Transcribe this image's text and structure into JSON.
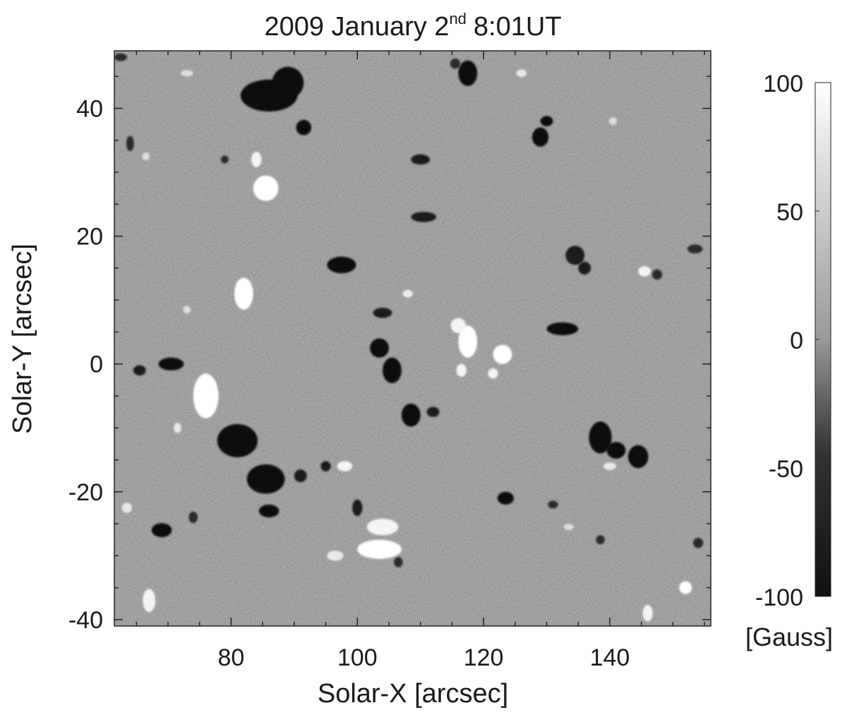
{
  "chart_data": {
    "type": "heatmap",
    "title": {
      "main": "2009 January 2",
      "superscript": "nd",
      "rest": "8:01UT"
    },
    "xlabel": "Solar-X [arcsec]",
    "ylabel": "Solar-Y [arcsec]",
    "xlim": [
      61.5,
      156
    ],
    "ylim": [
      -41,
      49
    ],
    "x_ticks": [
      80,
      100,
      120,
      140
    ],
    "x_tick_labels": [
      "80",
      "100",
      "120",
      "140"
    ],
    "y_ticks": [
      -40,
      -20,
      0,
      20,
      40
    ],
    "y_tick_labels": [
      "-40",
      "-20",
      "0",
      "20",
      "40"
    ],
    "colorbar": {
      "range": [
        -100,
        100
      ],
      "ticks": [
        100,
        50,
        0,
        -50,
        -100
      ],
      "tick_labels": [
        "100",
        "50",
        "0",
        "-50",
        "-100"
      ],
      "unit": "[Gauss]",
      "colormap": "gray",
      "min_color": "#111111",
      "max_color": "#ffffff"
    },
    "negative_patches": [
      {
        "x": 86.0,
        "y": 42.0,
        "rx": 4.5,
        "ry": 2.5,
        "value": -100
      },
      {
        "x": 89.0,
        "y": 44.0,
        "rx": 2.5,
        "ry": 2.5,
        "value": -100
      },
      {
        "x": 91.5,
        "y": 37.0,
        "rx": 1.2,
        "ry": 1.2,
        "value": -100
      },
      {
        "x": 117.5,
        "y": 45.5,
        "rx": 1.5,
        "ry": 2.0,
        "value": -100
      },
      {
        "x": 129.0,
        "y": 35.5,
        "rx": 1.3,
        "ry": 1.5,
        "value": -100
      },
      {
        "x": 130.0,
        "y": 38.0,
        "rx": 1.0,
        "ry": 0.8,
        "value": -100
      },
      {
        "x": 110.0,
        "y": 32.0,
        "rx": 1.5,
        "ry": 0.8,
        "value": -90
      },
      {
        "x": 110.5,
        "y": 23.0,
        "rx": 2.0,
        "ry": 0.8,
        "value": -90
      },
      {
        "x": 97.5,
        "y": 15.5,
        "rx": 2.3,
        "ry": 1.3,
        "value": -100
      },
      {
        "x": 104.0,
        "y": 8.0,
        "rx": 1.5,
        "ry": 0.8,
        "value": -90
      },
      {
        "x": 103.5,
        "y": 2.5,
        "rx": 1.5,
        "ry": 1.5,
        "value": -100
      },
      {
        "x": 105.5,
        "y": -1.0,
        "rx": 1.5,
        "ry": 2.0,
        "value": -100
      },
      {
        "x": 70.5,
        "y": 0.0,
        "rx": 2.0,
        "ry": 1.0,
        "value": -100
      },
      {
        "x": 65.5,
        "y": -1.0,
        "rx": 1.0,
        "ry": 0.8,
        "value": -90
      },
      {
        "x": 81.0,
        "y": -12.0,
        "rx": 3.2,
        "ry": 2.6,
        "value": -100
      },
      {
        "x": 85.5,
        "y": -18.0,
        "rx": 3.0,
        "ry": 2.3,
        "value": -100
      },
      {
        "x": 86.0,
        "y": -23.0,
        "rx": 1.6,
        "ry": 1.0,
        "value": -100
      },
      {
        "x": 91.0,
        "y": -17.5,
        "rx": 1.0,
        "ry": 1.0,
        "value": -90
      },
      {
        "x": 95.0,
        "y": -16.0,
        "rx": 0.8,
        "ry": 0.8,
        "value": -90
      },
      {
        "x": 108.5,
        "y": -8.0,
        "rx": 1.5,
        "ry": 1.8,
        "value": -100
      },
      {
        "x": 112.0,
        "y": -7.5,
        "rx": 1.0,
        "ry": 0.8,
        "value": -90
      },
      {
        "x": 132.5,
        "y": 5.5,
        "rx": 2.5,
        "ry": 1.0,
        "value": -100
      },
      {
        "x": 134.5,
        "y": 17.0,
        "rx": 1.5,
        "ry": 1.5,
        "value": -90
      },
      {
        "x": 136.0,
        "y": 15.0,
        "rx": 1.0,
        "ry": 1.0,
        "value": -90
      },
      {
        "x": 138.5,
        "y": -11.5,
        "rx": 1.8,
        "ry": 2.5,
        "value": -100
      },
      {
        "x": 141.0,
        "y": -13.5,
        "rx": 1.5,
        "ry": 1.3,
        "value": -100
      },
      {
        "x": 144.5,
        "y": -14.5,
        "rx": 1.6,
        "ry": 1.8,
        "value": -100
      },
      {
        "x": 123.5,
        "y": -21.0,
        "rx": 1.3,
        "ry": 1.0,
        "value": -100
      },
      {
        "x": 69.0,
        "y": -26.0,
        "rx": 1.6,
        "ry": 1.1,
        "value": -100
      },
      {
        "x": 100.0,
        "y": -22.5,
        "rx": 0.8,
        "ry": 1.3,
        "value": -90
      },
      {
        "x": 106.5,
        "y": -31.0,
        "rx": 0.7,
        "ry": 0.8,
        "value": -80
      },
      {
        "x": 64.0,
        "y": 34.5,
        "rx": 0.6,
        "ry": 1.2,
        "value": -80
      },
      {
        "x": 153.5,
        "y": 18.0,
        "rx": 1.2,
        "ry": 0.7,
        "value": -80
      },
      {
        "x": 147.5,
        "y": 14.0,
        "rx": 0.8,
        "ry": 0.8,
        "value": -80
      },
      {
        "x": 154.0,
        "y": -28.0,
        "rx": 0.8,
        "ry": 0.8,
        "value": -80
      },
      {
        "x": 131.0,
        "y": -22.0,
        "rx": 0.8,
        "ry": 0.6,
        "value": -80
      },
      {
        "x": 138.5,
        "y": -27.5,
        "rx": 0.7,
        "ry": 0.7,
        "value": -80
      },
      {
        "x": 115.5,
        "y": 47.0,
        "rx": 0.8,
        "ry": 0.8,
        "value": -80
      },
      {
        "x": 62.5,
        "y": 48.0,
        "rx": 1.0,
        "ry": 0.6,
        "value": -80
      },
      {
        "x": 74.0,
        "y": -24.0,
        "rx": 0.7,
        "ry": 0.9,
        "value": -80
      },
      {
        "x": 79.0,
        "y": 32.0,
        "rx": 0.6,
        "ry": 0.6,
        "value": -80
      }
    ],
    "positive_patches": [
      {
        "x": 82.0,
        "y": 11.0,
        "rx": 1.5,
        "ry": 2.5,
        "value": 100
      },
      {
        "x": 76.0,
        "y": -5.0,
        "rx": 2.0,
        "ry": 3.5,
        "value": 100
      },
      {
        "x": 85.5,
        "y": 27.5,
        "rx": 2.0,
        "ry": 2.0,
        "value": 100
      },
      {
        "x": 84.0,
        "y": 32.0,
        "rx": 0.8,
        "ry": 1.2,
        "value": 90
      },
      {
        "x": 117.5,
        "y": 3.5,
        "rx": 1.5,
        "ry": 2.5,
        "value": 100
      },
      {
        "x": 116.0,
        "y": 6.0,
        "rx": 1.2,
        "ry": 1.2,
        "value": 90
      },
      {
        "x": 123.0,
        "y": 1.5,
        "rx": 1.5,
        "ry": 1.5,
        "value": 100
      },
      {
        "x": 116.5,
        "y": -1.0,
        "rx": 0.8,
        "ry": 1.0,
        "value": 90
      },
      {
        "x": 121.5,
        "y": -1.5,
        "rx": 0.8,
        "ry": 0.8,
        "value": 90
      },
      {
        "x": 103.5,
        "y": -29.0,
        "rx": 3.5,
        "ry": 1.5,
        "value": 100
      },
      {
        "x": 104.0,
        "y": -25.5,
        "rx": 2.5,
        "ry": 1.3,
        "value": 90
      },
      {
        "x": 96.5,
        "y": -30.0,
        "rx": 1.3,
        "ry": 0.8,
        "value": 80
      },
      {
        "x": 67.0,
        "y": -37.0,
        "rx": 1.0,
        "ry": 1.8,
        "value": 90
      },
      {
        "x": 145.5,
        "y": 14.5,
        "rx": 1.0,
        "ry": 0.8,
        "value": 90
      },
      {
        "x": 152.0,
        "y": -35.0,
        "rx": 1.0,
        "ry": 1.0,
        "value": 100
      },
      {
        "x": 146.0,
        "y": -39.0,
        "rx": 0.8,
        "ry": 1.3,
        "value": 90
      },
      {
        "x": 98.0,
        "y": -16.0,
        "rx": 1.2,
        "ry": 0.8,
        "value": 90
      },
      {
        "x": 126.0,
        "y": 45.5,
        "rx": 0.8,
        "ry": 0.6,
        "value": 80
      },
      {
        "x": 63.5,
        "y": -22.5,
        "rx": 0.8,
        "ry": 0.8,
        "value": 80
      },
      {
        "x": 71.5,
        "y": -10.0,
        "rx": 0.6,
        "ry": 0.8,
        "value": 80
      },
      {
        "x": 140.0,
        "y": -16.0,
        "rx": 1.0,
        "ry": 0.6,
        "value": 80
      },
      {
        "x": 133.5,
        "y": -25.5,
        "rx": 0.8,
        "ry": 0.5,
        "value": 70
      },
      {
        "x": 108.0,
        "y": 11.0,
        "rx": 0.8,
        "ry": 0.6,
        "value": 80
      },
      {
        "x": 73.0,
        "y": 45.5,
        "rx": 1.0,
        "ry": 0.5,
        "value": 70
      },
      {
        "x": 66.5,
        "y": 32.5,
        "rx": 0.6,
        "ry": 0.6,
        "value": 70
      },
      {
        "x": 140.5,
        "y": 38.0,
        "rx": 0.6,
        "ry": 0.6,
        "value": 70
      },
      {
        "x": 73.0,
        "y": 8.5,
        "rx": 0.6,
        "ry": 0.6,
        "value": 70
      }
    ]
  }
}
